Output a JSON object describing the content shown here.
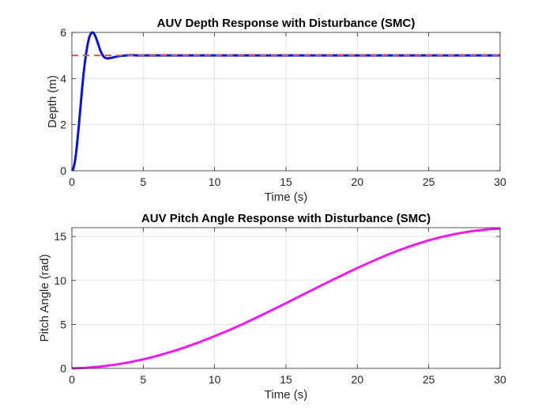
{
  "chart_data": [
    {
      "type": "line",
      "title": "AUV Depth Response with Disturbance (SMC)",
      "xlabel": "Time (s)",
      "ylabel": "Depth (m)",
      "xlim": [
        0,
        30
      ],
      "ylim": [
        0,
        6
      ],
      "xticks": [
        0,
        5,
        10,
        15,
        20,
        25,
        30
      ],
      "yticks": [
        0,
        2,
        4,
        6
      ],
      "grid": true,
      "series": [
        {
          "style": "dashed",
          "color": "#e8514d",
          "x": [
            0,
            30
          ],
          "y": [
            5,
            5
          ]
        },
        {
          "style": "solid",
          "color": "#0a14d9",
          "x": [
            0,
            0.1,
            0.2,
            0.3,
            0.4,
            0.5,
            0.6,
            0.7,
            0.8,
            0.9,
            1.0,
            1.1,
            1.2,
            1.3,
            1.4,
            1.5,
            1.6,
            1.7,
            1.8,
            1.9,
            2.0,
            2.1,
            2.2,
            2.3,
            2.4,
            2.5,
            2.6,
            2.8,
            3.0,
            3.2,
            3.4,
            3.6,
            3.8,
            4.0,
            4.3,
            4.6,
            5.0,
            6.0,
            8.0,
            10,
            15,
            20,
            25,
            30
          ],
          "y": [
            0,
            0.08,
            0.35,
            0.8,
            1.4,
            2.05,
            2.75,
            3.45,
            4.1,
            4.65,
            5.1,
            5.48,
            5.75,
            5.92,
            6.0,
            5.99,
            5.9,
            5.75,
            5.57,
            5.38,
            5.2,
            5.07,
            4.97,
            4.91,
            4.88,
            4.87,
            4.88,
            4.9,
            4.93,
            4.96,
            4.98,
            4.99,
            5.0,
            5.01,
            5.01,
            5.0,
            5.0,
            5.0,
            5.0,
            5.0,
            5.0,
            5.0,
            5.0,
            5.0
          ]
        }
      ]
    },
    {
      "type": "line",
      "title": "AUV Pitch Angle Response with Disturbance (SMC)",
      "xlabel": "Time (s)",
      "ylabel": "Pitch Angle (rad)",
      "xlim": [
        0,
        30
      ],
      "ylim": [
        0,
        16
      ],
      "xticks": [
        0,
        5,
        10,
        15,
        20,
        25,
        30
      ],
      "yticks": [
        0,
        5,
        10,
        15
      ],
      "grid": true,
      "series": [
        {
          "style": "solid",
          "color": "#ee1aee",
          "x": [
            0,
            1,
            2,
            3,
            4,
            5,
            6,
            7,
            8,
            9,
            10,
            11,
            12,
            13,
            14,
            15,
            16,
            17,
            18,
            19,
            20,
            21,
            22,
            23,
            24,
            25,
            26,
            27,
            28,
            29,
            30
          ],
          "y": [
            0.0,
            0.07,
            0.2,
            0.41,
            0.68,
            1.02,
            1.43,
            1.9,
            2.43,
            3.02,
            3.66,
            4.34,
            5.06,
            5.82,
            6.61,
            7.41,
            8.23,
            9.04,
            9.85,
            10.64,
            11.41,
            12.14,
            12.84,
            13.48,
            14.05,
            14.56,
            14.98,
            15.32,
            15.6,
            15.79,
            15.9
          ]
        }
      ]
    }
  ]
}
